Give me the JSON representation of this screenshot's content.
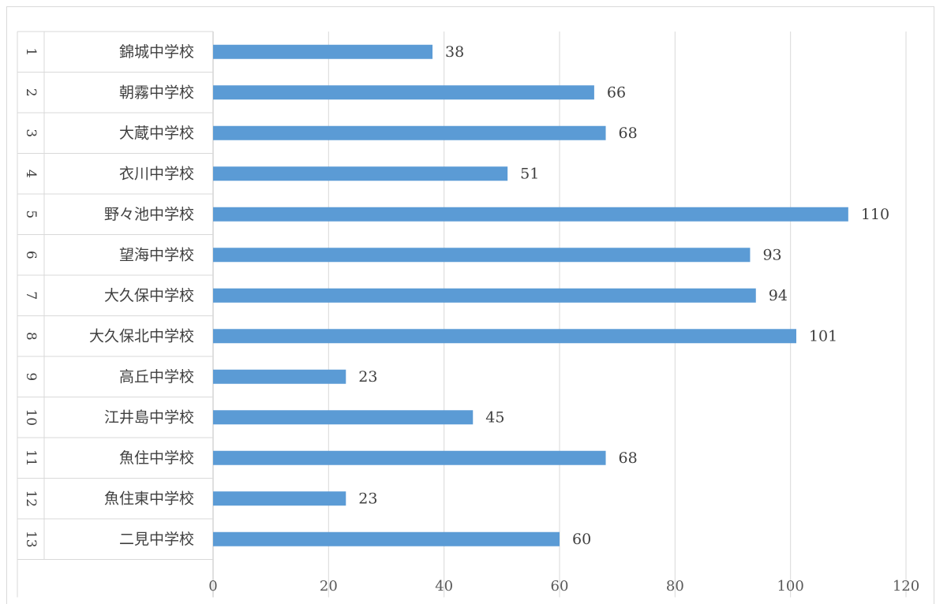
{
  "chart_data": {
    "type": "bar",
    "orientation": "horizontal",
    "index": [
      "1",
      "2",
      "3",
      "4",
      "5",
      "6",
      "7",
      "8",
      "9",
      "10",
      "11",
      "12",
      "13"
    ],
    "categories": [
      "錦城中学校",
      "朝霧中学校",
      "大蔵中学校",
      "衣川中学校",
      "野々池中学校",
      "望海中学校",
      "大久保中学校",
      "大久保北中学校",
      "高丘中学校",
      "江井島中学校",
      "魚住中学校",
      "魚住東中学校",
      "二見中学校"
    ],
    "values": [
      38,
      66,
      68,
      51,
      110,
      93,
      94,
      101,
      23,
      45,
      68,
      23,
      60
    ],
    "xlim": [
      0,
      120
    ],
    "xticks": [
      "0",
      "20",
      "40",
      "60",
      "80",
      "100",
      "120"
    ],
    "grid": true,
    "bar_color": "#5b9bd5",
    "title": "",
    "xlabel": "",
    "ylabel": ""
  }
}
